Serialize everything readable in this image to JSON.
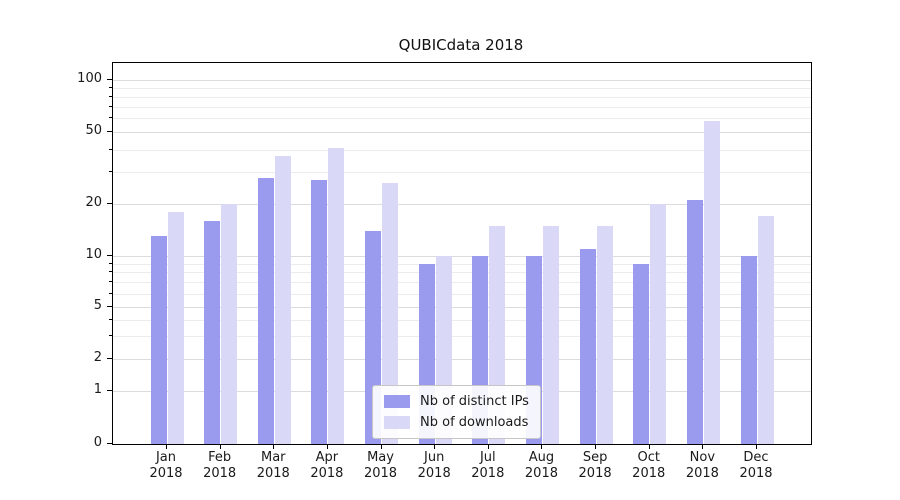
{
  "chart_data": {
    "type": "bar",
    "title": "QUBICdata 2018",
    "categories": [
      "Jan",
      "Feb",
      "Mar",
      "Apr",
      "May",
      "Jun",
      "Jul",
      "Aug",
      "Sep",
      "Oct",
      "Nov",
      "Dec"
    ],
    "year": "2018",
    "series": [
      {
        "name": "Nb of distinct IPs",
        "color": "#9a9aef",
        "values": [
          13,
          16,
          28,
          27,
          14,
          9,
          10,
          10,
          11,
          9,
          21,
          10
        ]
      },
      {
        "name": "Nb of downloads",
        "color": "#d9d9f7",
        "values": [
          18,
          20,
          37,
          41,
          26,
          10,
          15,
          15,
          15,
          20,
          58,
          17
        ]
      }
    ],
    "xlabel": "",
    "ylabel": "",
    "yscale": "symlog",
    "yticks": [
      0,
      1,
      2,
      5,
      10,
      20,
      50,
      100
    ],
    "ylim": [
      0,
      130
    ],
    "grid": true,
    "legend_position": "lower center"
  }
}
